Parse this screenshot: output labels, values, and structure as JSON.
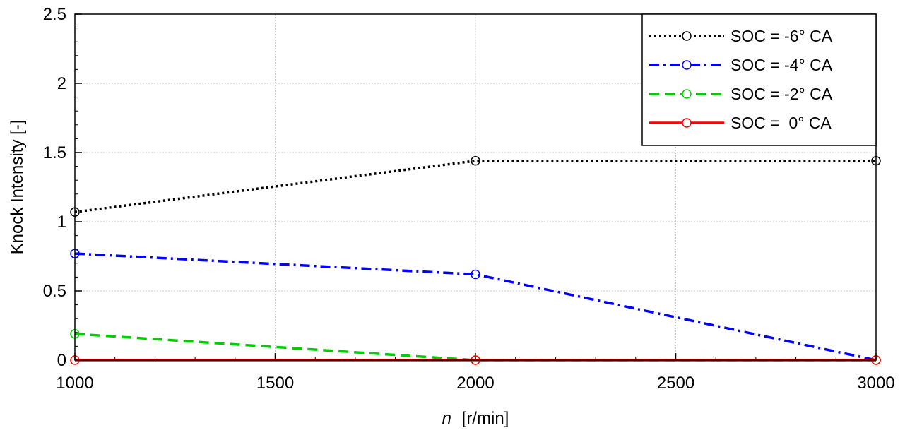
{
  "chart_data": {
    "type": "line",
    "title": "",
    "xlabel_symbol": "n",
    "xlabel_unit": "[r/min]",
    "ylabel": "Knock Intensity [-]",
    "xlim": [
      1000,
      3000
    ],
    "ylim": [
      0,
      2.5
    ],
    "x_ticks": [
      "1000",
      "1500",
      "2000",
      "2500",
      "3000"
    ],
    "y_ticks": [
      "0",
      "0.5",
      "1",
      "1.5",
      "2",
      "2.5"
    ],
    "grid": true,
    "legend_position": "top-right",
    "series": [
      {
        "name": "SOC = -6° CA",
        "color": "#000000",
        "dash": "dotted",
        "x": [
          1000,
          2000,
          3000
        ],
        "y": [
          1.07,
          1.44,
          1.44
        ]
      },
      {
        "name": "SOC = -4° CA",
        "color": "#0000ff",
        "dash": "dashdot",
        "x": [
          1000,
          2000,
          3000
        ],
        "y": [
          0.77,
          0.62,
          0.0
        ]
      },
      {
        "name": "SOC = -2° CA",
        "color": "#00cc00",
        "dash": "dashed",
        "x": [
          1000,
          2000,
          3000
        ],
        "y": [
          0.19,
          0.0,
          0.0
        ]
      },
      {
        "name": "SOC =  0° CA",
        "color": "#ff0000",
        "dash": "solid",
        "x": [
          1000,
          2000,
          3000
        ],
        "y": [
          0.0,
          0.0,
          0.0
        ]
      }
    ]
  }
}
